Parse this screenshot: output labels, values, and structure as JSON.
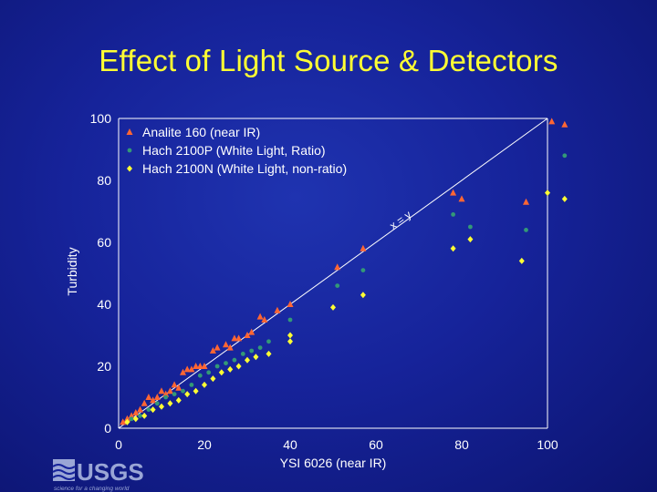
{
  "slide": {
    "title": "Effect of Light Source & Detectors",
    "logo_text": "USGS",
    "logo_tagline": "science for a changing world"
  },
  "colors": {
    "background": "#16239a",
    "title": "#ffff33",
    "text": "#ffffff",
    "analite": "#ff6633",
    "p2100": "#339977",
    "n2100": "#ffff33"
  },
  "chart_data": {
    "type": "scatter",
    "xlabel": "YSI 6026 (near IR)",
    "ylabel": "Turbidity",
    "xlim": [
      0,
      100
    ],
    "ylim": [
      0,
      100
    ],
    "xticks": [
      0,
      20,
      40,
      60,
      80,
      100
    ],
    "yticks": [
      0,
      20,
      40,
      60,
      80,
      100
    ],
    "legend_position": "top-left",
    "reference_line": {
      "label": "x = y",
      "from": [
        0,
        0
      ],
      "to": [
        100,
        100
      ]
    },
    "series": [
      {
        "name": "Analite 160 (near IR)",
        "marker": "triangle",
        "color": "#ff6633",
        "points": [
          [
            1,
            2
          ],
          [
            2,
            3
          ],
          [
            3,
            4
          ],
          [
            4,
            5
          ],
          [
            5,
            6
          ],
          [
            6,
            8
          ],
          [
            7,
            10
          ],
          [
            8,
            9
          ],
          [
            9,
            10
          ],
          [
            10,
            12
          ],
          [
            11,
            11
          ],
          [
            12,
            12
          ],
          [
            13,
            14
          ],
          [
            14,
            13
          ],
          [
            15,
            18
          ],
          [
            16,
            19
          ],
          [
            17,
            19
          ],
          [
            18,
            20
          ],
          [
            19,
            20
          ],
          [
            20,
            20
          ],
          [
            22,
            25
          ],
          [
            23,
            26
          ],
          [
            25,
            27
          ],
          [
            26,
            26
          ],
          [
            27,
            29
          ],
          [
            28,
            29
          ],
          [
            30,
            30
          ],
          [
            31,
            31
          ],
          [
            33,
            36
          ],
          [
            34,
            35
          ],
          [
            37,
            38
          ],
          [
            40,
            40
          ],
          [
            51,
            52
          ],
          [
            57,
            58
          ],
          [
            78,
            76
          ],
          [
            80,
            74
          ],
          [
            95,
            73
          ],
          [
            101,
            99
          ],
          [
            104,
            98
          ]
        ]
      },
      {
        "name": "Hach 2100P (White Light, Ratio)",
        "marker": "circle",
        "color": "#339977",
        "points": [
          [
            3,
            3
          ],
          [
            5,
            4
          ],
          [
            7,
            6
          ],
          [
            9,
            8
          ],
          [
            11,
            10
          ],
          [
            13,
            11
          ],
          [
            15,
            12
          ],
          [
            17,
            14
          ],
          [
            19,
            17
          ],
          [
            21,
            18
          ],
          [
            23,
            20
          ],
          [
            25,
            21
          ],
          [
            27,
            22
          ],
          [
            29,
            24
          ],
          [
            31,
            25
          ],
          [
            33,
            26
          ],
          [
            35,
            28
          ],
          [
            40,
            35
          ],
          [
            51,
            46
          ],
          [
            57,
            51
          ],
          [
            78,
            69
          ],
          [
            82,
            65
          ],
          [
            95,
            64
          ],
          [
            104,
            88
          ]
        ]
      },
      {
        "name": "Hach 2100N (White Light, non-ratio)",
        "marker": "diamond",
        "color": "#ffff33",
        "points": [
          [
            2,
            2
          ],
          [
            4,
            3
          ],
          [
            6,
            4
          ],
          [
            8,
            6
          ],
          [
            10,
            7
          ],
          [
            12,
            8
          ],
          [
            14,
            9
          ],
          [
            16,
            11
          ],
          [
            18,
            12
          ],
          [
            20,
            14
          ],
          [
            22,
            16
          ],
          [
            24,
            18
          ],
          [
            26,
            19
          ],
          [
            28,
            20
          ],
          [
            30,
            22
          ],
          [
            32,
            23
          ],
          [
            35,
            24
          ],
          [
            40,
            30
          ],
          [
            40,
            28
          ],
          [
            50,
            39
          ],
          [
            57,
            43
          ],
          [
            78,
            58
          ],
          [
            82,
            61
          ],
          [
            94,
            54
          ],
          [
            100,
            76
          ],
          [
            104,
            74
          ]
        ]
      }
    ]
  }
}
